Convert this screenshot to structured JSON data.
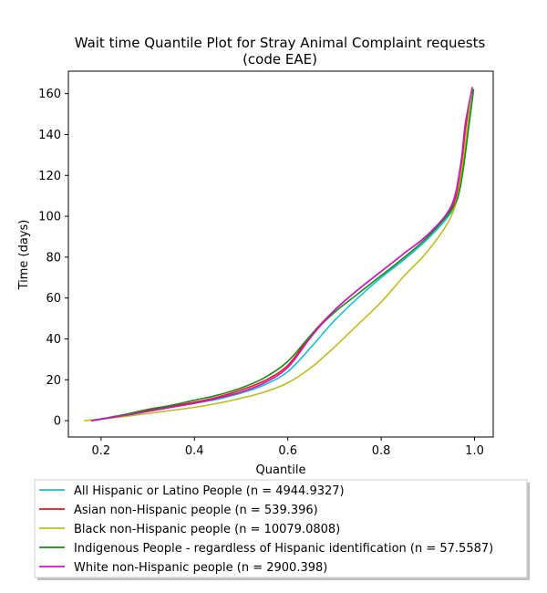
{
  "chart_data": {
    "type": "line",
    "title_line1": "Wait time Quantile Plot for Stray Animal Complaint  requests",
    "title_line2": "(code EAE)",
    "xlabel": "Quantile",
    "ylabel": "Time (days)",
    "xlim": [
      0.13,
      1.04
    ],
    "ylim": [
      -8,
      171
    ],
    "xticks": [
      0.2,
      0.4,
      0.6,
      0.8,
      1.0
    ],
    "xtick_labels": [
      "0.2",
      "0.4",
      "0.6",
      "0.8",
      "1.0"
    ],
    "yticks": [
      0,
      20,
      40,
      60,
      80,
      100,
      120,
      140,
      160
    ],
    "ytick_labels": [
      "0",
      "20",
      "40",
      "60",
      "80",
      "100",
      "120",
      "140",
      "160"
    ],
    "grid": false,
    "legend_placement": "below",
    "series": [
      {
        "name": "All Hispanic or Latino People (n = 4944.9327)",
        "color": "#17becf",
        "points": [
          [
            0.18,
            0
          ],
          [
            0.25,
            2.5
          ],
          [
            0.3,
            4.5
          ],
          [
            0.35,
            6.5
          ],
          [
            0.4,
            8.5
          ],
          [
            0.45,
            10.5
          ],
          [
            0.5,
            13.5
          ],
          [
            0.55,
            17.5
          ],
          [
            0.6,
            24
          ],
          [
            0.65,
            36
          ],
          [
            0.7,
            49
          ],
          [
            0.75,
            60
          ],
          [
            0.8,
            70
          ],
          [
            0.85,
            79
          ],
          [
            0.9,
            89
          ],
          [
            0.95,
            102
          ],
          [
            0.97,
            115
          ],
          [
            0.985,
            140
          ],
          [
            0.995,
            162
          ]
        ]
      },
      {
        "name": "Asian non-Hispanic people (n = 539.396)",
        "color": "#e8151b",
        "points": [
          [
            0.18,
            0
          ],
          [
            0.25,
            2.5
          ],
          [
            0.3,
            5
          ],
          [
            0.35,
            7
          ],
          [
            0.4,
            9
          ],
          [
            0.45,
            11.5
          ],
          [
            0.5,
            15
          ],
          [
            0.55,
            19.5
          ],
          [
            0.6,
            27
          ],
          [
            0.65,
            42
          ],
          [
            0.7,
            54
          ],
          [
            0.75,
            64
          ],
          [
            0.8,
            73
          ],
          [
            0.85,
            82
          ],
          [
            0.9,
            91
          ],
          [
            0.95,
            104
          ],
          [
            0.97,
            120
          ],
          [
            0.98,
            142
          ],
          [
            0.995,
            162
          ]
        ]
      },
      {
        "name": "Black non-Hispanic people (n = 10079.0808)",
        "color": "#bcbd22",
        "points": [
          [
            0.165,
            0
          ],
          [
            0.2,
            0.8
          ],
          [
            0.25,
            2
          ],
          [
            0.3,
            3.5
          ],
          [
            0.35,
            5
          ],
          [
            0.4,
            6.5
          ],
          [
            0.45,
            8.5
          ],
          [
            0.5,
            11
          ],
          [
            0.55,
            14
          ],
          [
            0.6,
            18.5
          ],
          [
            0.65,
            26
          ],
          [
            0.7,
            36
          ],
          [
            0.75,
            47
          ],
          [
            0.8,
            58
          ],
          [
            0.85,
            71
          ],
          [
            0.9,
            83
          ],
          [
            0.95,
            100
          ],
          [
            0.97,
            118
          ],
          [
            0.985,
            145
          ],
          [
            0.995,
            163
          ]
        ]
      },
      {
        "name": "Indigenous People - regardless of Hispanic identification (n = 57.5587)",
        "color": "#1a8a1a",
        "points": [
          [
            0.18,
            0
          ],
          [
            0.25,
            3
          ],
          [
            0.3,
            5.5
          ],
          [
            0.35,
            7.5
          ],
          [
            0.4,
            10
          ],
          [
            0.45,
            12.5
          ],
          [
            0.5,
            16
          ],
          [
            0.55,
            21
          ],
          [
            0.6,
            29
          ],
          [
            0.65,
            42
          ],
          [
            0.7,
            53
          ],
          [
            0.75,
            62
          ],
          [
            0.8,
            71
          ],
          [
            0.85,
            80
          ],
          [
            0.9,
            90
          ],
          [
            0.95,
            103
          ],
          [
            0.97,
            115
          ],
          [
            0.99,
            148
          ],
          [
            0.998,
            162
          ]
        ]
      },
      {
        "name": "White non-Hispanic people (n = 2900.398)",
        "color": "#c71ac7",
        "points": [
          [
            0.18,
            0
          ],
          [
            0.25,
            2.5
          ],
          [
            0.3,
            4.5
          ],
          [
            0.35,
            6.5
          ],
          [
            0.4,
            8.5
          ],
          [
            0.45,
            11
          ],
          [
            0.5,
            14
          ],
          [
            0.55,
            18.5
          ],
          [
            0.6,
            26
          ],
          [
            0.65,
            41
          ],
          [
            0.7,
            54
          ],
          [
            0.75,
            64
          ],
          [
            0.8,
            73
          ],
          [
            0.85,
            82
          ],
          [
            0.9,
            91
          ],
          [
            0.95,
            105
          ],
          [
            0.97,
            125
          ],
          [
            0.98,
            145
          ],
          [
            0.995,
            163
          ]
        ]
      }
    ]
  }
}
